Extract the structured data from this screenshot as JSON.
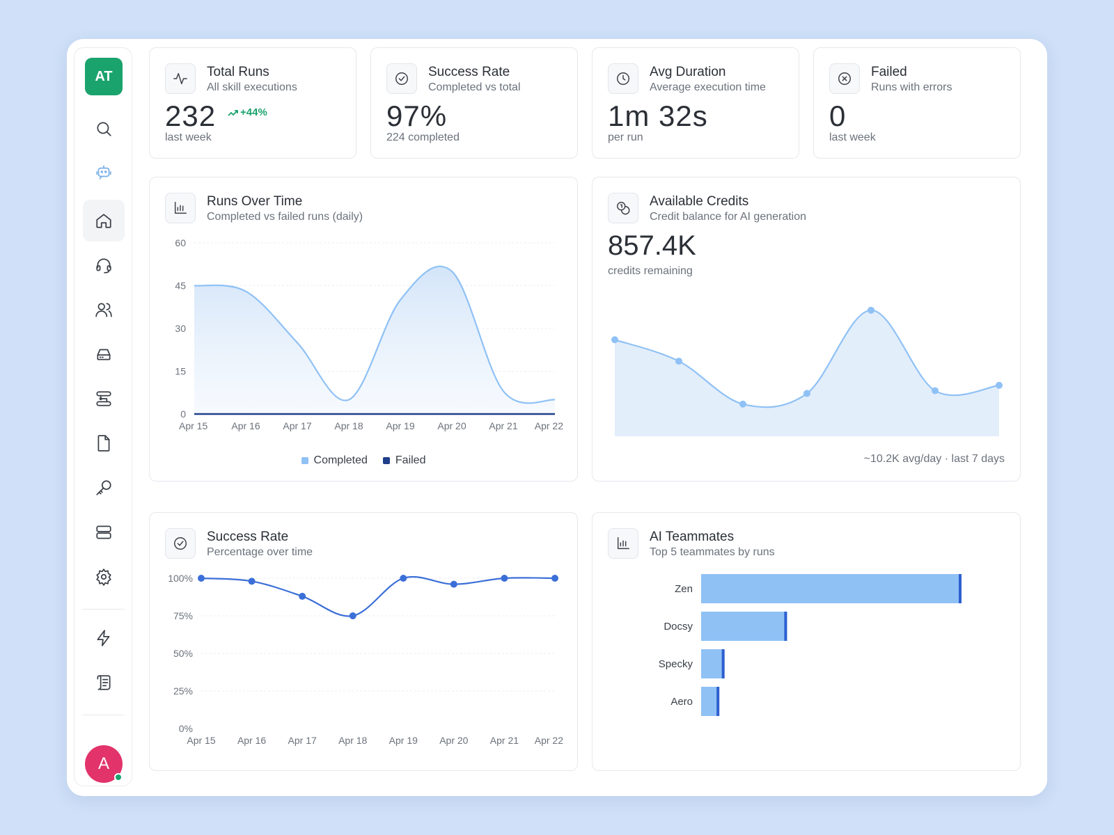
{
  "sidebar": {
    "logo": "AT",
    "avatar": "A",
    "icons": [
      "search-icon",
      "bot-icon",
      "home-icon",
      "headset-icon",
      "users-icon",
      "inbox-icon",
      "workflow-icon",
      "file-icon",
      "key-icon",
      "server-icon",
      "gear-icon",
      "bolt-icon",
      "scroll-icon"
    ]
  },
  "stats": [
    {
      "title": "Total Runs",
      "subtitle": "All skill executions",
      "value": "232",
      "trend": "+44%",
      "foot": "last week",
      "icon": "activity-icon"
    },
    {
      "title": "Success Rate",
      "subtitle": "Completed vs total",
      "value": "97%",
      "foot": "224 completed",
      "icon": "check-circle-icon"
    },
    {
      "title": "Avg Duration",
      "subtitle": "Average execution time",
      "value": "1m 32s",
      "foot": "per run",
      "icon": "clock-icon"
    },
    {
      "title": "Failed",
      "subtitle": "Runs with errors",
      "value": "0",
      "foot": "last week",
      "icon": "x-circle-icon"
    }
  ],
  "runs_card": {
    "title": "Runs Over Time",
    "subtitle": "Completed vs failed runs (daily)"
  },
  "credits_card": {
    "title": "Available Credits",
    "subtitle": "Credit balance for AI generation",
    "value": "857.4K",
    "foot": "credits remaining",
    "note": "~10.2K avg/day · last 7 days"
  },
  "success_card": {
    "title": "Success Rate",
    "subtitle": "Percentage over time"
  },
  "teammates_card": {
    "title": "AI Teammates",
    "subtitle": "Top 5 teammates by runs"
  },
  "colors": {
    "accent_green": "#1aa36d",
    "completed": "#8fc1f5",
    "failed": "#1f3f8a",
    "line_blue": "#3b6fd8",
    "avatar_pink": "#e2336b"
  },
  "chart_data": [
    {
      "type": "area",
      "title": "Runs Over Time",
      "categories": [
        "Apr 15",
        "Apr 16",
        "Apr 17",
        "Apr 18",
        "Apr 19",
        "Apr 20",
        "Apr 21",
        "Apr 22"
      ],
      "series": [
        {
          "name": "Completed",
          "values": [
            45,
            43,
            25,
            5,
            40,
            50,
            8,
            5
          ]
        },
        {
          "name": "Failed",
          "values": [
            0,
            0,
            0,
            0,
            0,
            0,
            0,
            0
          ]
        }
      ],
      "yticks": [
        "60",
        "45",
        "30",
        "15",
        "0"
      ],
      "ylim": [
        0,
        60
      ],
      "legend": "bottom"
    },
    {
      "type": "area",
      "title": "Available Credits",
      "values": [
        36,
        28,
        12,
        16,
        47,
        17,
        19
      ],
      "ylim": [
        0,
        55
      ],
      "axes": false
    },
    {
      "type": "line",
      "title": "Success Rate",
      "categories": [
        "Apr 15",
        "Apr 16",
        "Apr 17",
        "Apr 18",
        "Apr 19",
        "Apr 20",
        "Apr 21",
        "Apr 22"
      ],
      "values": [
        100,
        98,
        88,
        75,
        100,
        96,
        100,
        100
      ],
      "yticks": [
        "100%",
        "75%",
        "50%",
        "25%",
        "0%"
      ],
      "ylim": [
        0,
        100
      ]
    },
    {
      "type": "bar",
      "orientation": "horizontal",
      "title": "AI Teammates",
      "categories": [
        "Zen",
        "Docsy",
        "Specky",
        "Aero"
      ],
      "values": [
        100,
        33,
        9,
        7
      ]
    }
  ]
}
